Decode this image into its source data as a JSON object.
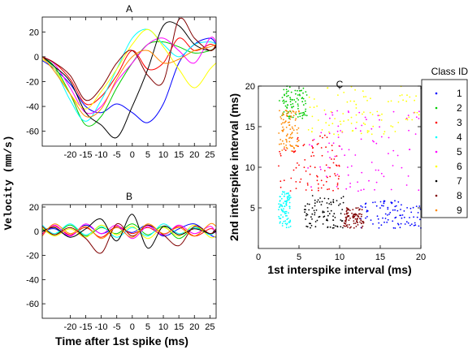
{
  "figure": {
    "ylabel_left": "Velocity (mm/s)",
    "xlabel_left": "Time after 1st spike (ms)"
  },
  "colors": {
    "series": [
      "#0000ff",
      "#00cc00",
      "#ff0000",
      "#00ffff",
      "#ff00ff",
      "#ffff00",
      "#000000",
      "#800000",
      "#ff8800"
    ]
  },
  "chart_data": [
    {
      "panel": "A",
      "type": "line",
      "title": "A",
      "xlim": [
        -29,
        27
      ],
      "ylim": [
        -72,
        32
      ],
      "xticks": [
        -20,
        -15,
        -10,
        -5,
        0,
        5,
        10,
        15,
        20,
        25
      ],
      "yticks": [
        -60,
        -40,
        -20,
        0,
        20
      ],
      "series": [
        {
          "id": "1",
          "x": [
            -29,
            -25,
            -20,
            -15,
            -10,
            -5,
            0,
            5,
            10,
            15,
            20,
            25,
            27
          ],
          "y": [
            -3,
            -10,
            -22,
            -40,
            -45,
            -38,
            -45,
            -53,
            -38,
            -5,
            10,
            15,
            10
          ]
        },
        {
          "id": "2",
          "x": [
            -29,
            -25,
            -20,
            -15,
            -10,
            -5,
            0,
            5,
            10,
            15,
            20,
            25,
            27
          ],
          "y": [
            0,
            -8,
            -30,
            -55,
            -48,
            -25,
            -5,
            10,
            12,
            8,
            3,
            5,
            8
          ]
        },
        {
          "id": "3",
          "x": [
            -29,
            -25,
            -20,
            -15,
            -10,
            -5,
            0,
            5,
            10,
            15,
            20,
            25,
            27
          ],
          "y": [
            0,
            -5,
            -18,
            -38,
            -32,
            -15,
            5,
            -10,
            -5,
            15,
            5,
            10,
            8
          ]
        },
        {
          "id": "4",
          "x": [
            -29,
            -25,
            -20,
            -15,
            -10,
            -5,
            0,
            5,
            10,
            15,
            20,
            25,
            27
          ],
          "y": [
            0,
            -10,
            -35,
            -52,
            -35,
            -10,
            15,
            22,
            10,
            0,
            10,
            12,
            10
          ]
        },
        {
          "id": "5",
          "x": [
            -29,
            -25,
            -20,
            -15,
            -10,
            -5,
            0,
            5,
            10,
            15,
            20,
            25,
            27
          ],
          "y": [
            0,
            -6,
            -25,
            -45,
            -40,
            -20,
            -5,
            10,
            15,
            5,
            -5,
            15,
            12
          ]
        },
        {
          "id": "6",
          "x": [
            -29,
            -25,
            -20,
            -15,
            -10,
            -5,
            0,
            5,
            10,
            15,
            20,
            25,
            27
          ],
          "y": [
            -2,
            -10,
            -30,
            -42,
            -28,
            -10,
            10,
            22,
            8,
            -10,
            -25,
            -10,
            -5
          ]
        },
        {
          "id": "7",
          "x": [
            -29,
            -25,
            -20,
            -15,
            -10,
            -5,
            0,
            5,
            10,
            15,
            20,
            25,
            27
          ],
          "y": [
            0,
            -8,
            -20,
            -45,
            -55,
            -65,
            -40,
            -10,
            25,
            25,
            10,
            5,
            8
          ]
        },
        {
          "id": "8",
          "x": [
            -29,
            -25,
            -20,
            -15,
            -10,
            -5,
            0,
            5,
            10,
            15,
            20,
            25,
            27
          ],
          "y": [
            0,
            -5,
            -15,
            -35,
            -25,
            -5,
            5,
            -15,
            -20,
            30,
            15,
            5,
            10
          ]
        },
        {
          "id": "9",
          "x": [
            -29,
            -25,
            -20,
            -15,
            -10,
            -5,
            0,
            5,
            10,
            15,
            20,
            25,
            27
          ],
          "y": [
            0,
            -12,
            -30,
            -48,
            -42,
            -18,
            0,
            5,
            -5,
            -2,
            5,
            8,
            10
          ]
        }
      ]
    },
    {
      "panel": "B",
      "type": "line",
      "title": "B",
      "xlim": [
        -29,
        27
      ],
      "ylim": [
        -72,
        22
      ],
      "xticks": [
        -20,
        -15,
        -10,
        -5,
        0,
        5,
        10,
        15,
        20,
        25
      ],
      "yticks": [
        -60,
        -40,
        -20,
        0,
        20
      ],
      "series": [
        {
          "id": "1",
          "x": [
            -29,
            -25,
            -20,
            -15,
            -10,
            -5,
            0,
            5,
            10,
            15,
            20,
            25,
            27
          ],
          "y": [
            0,
            2,
            -4,
            5,
            -2,
            3,
            -1,
            5,
            -4,
            2,
            6,
            -3,
            -5
          ]
        },
        {
          "id": "2",
          "x": [
            -29,
            -25,
            -20,
            -15,
            -10,
            -5,
            0,
            5,
            10,
            15,
            20,
            25,
            27
          ],
          "y": [
            2,
            -3,
            5,
            -4,
            3,
            -2,
            6,
            -3,
            4,
            -6,
            3,
            -2,
            0
          ]
        },
        {
          "id": "3",
          "x": [
            -29,
            -25,
            -20,
            -15,
            -10,
            -5,
            0,
            5,
            10,
            15,
            20,
            25,
            27
          ],
          "y": [
            -2,
            4,
            -3,
            3,
            -5,
            4,
            -2,
            3,
            -3,
            4,
            -4,
            2,
            0
          ]
        },
        {
          "id": "4",
          "x": [
            -29,
            -25,
            -20,
            -15,
            -10,
            -5,
            0,
            5,
            10,
            15,
            20,
            25,
            27
          ],
          "y": [
            5,
            -2,
            6,
            -3,
            4,
            -5,
            3,
            -4,
            6,
            -2,
            3,
            -3,
            2
          ]
        },
        {
          "id": "5",
          "x": [
            -29,
            -25,
            -20,
            -15,
            -10,
            -5,
            0,
            5,
            10,
            15,
            20,
            25,
            27
          ],
          "y": [
            -3,
            5,
            -4,
            6,
            -2,
            5,
            -6,
            4,
            -3,
            5,
            -2,
            4,
            -2
          ]
        },
        {
          "id": "6",
          "x": [
            -29,
            -25,
            -20,
            -15,
            -10,
            -5,
            0,
            5,
            10,
            15,
            20,
            25,
            27
          ],
          "y": [
            3,
            -4,
            2,
            -5,
            5,
            -3,
            4,
            -6,
            3,
            -4,
            5,
            -5,
            -4
          ]
        },
        {
          "id": "7",
          "x": [
            -29,
            -25,
            -20,
            -15,
            -10,
            -5,
            0,
            5,
            10,
            15,
            20,
            25,
            27
          ],
          "y": [
            0,
            3,
            -5,
            2,
            10,
            -8,
            14,
            -14,
            4,
            -3,
            2,
            -2,
            0
          ]
        },
        {
          "id": "8",
          "x": [
            -29,
            -25,
            -20,
            -15,
            -10,
            -5,
            0,
            5,
            10,
            15,
            20,
            25,
            27
          ],
          "y": [
            4,
            -3,
            3,
            -6,
            -18,
            6,
            -4,
            5,
            -3,
            -12,
            4,
            -2,
            2
          ]
        },
        {
          "id": "9",
          "x": [
            -29,
            -25,
            -20,
            -15,
            -10,
            -5,
            0,
            5,
            10,
            15,
            20,
            25,
            27
          ],
          "y": [
            -4,
            6,
            -2,
            4,
            -6,
            3,
            -5,
            6,
            -2,
            3,
            -4,
            6,
            4
          ]
        }
      ]
    },
    {
      "panel": "C",
      "type": "scatter",
      "title": "C",
      "xlabel": "1st interspike interval (ms)",
      "ylabel": "2nd interspike interval (ms)",
      "xlim": [
        0,
        20
      ],
      "ylim": [
        0,
        20
      ],
      "xticks": [
        0,
        5,
        10,
        15,
        20
      ],
      "yticks": [
        5,
        10,
        15,
        20
      ],
      "legend_title": "Class ID",
      "legend_position": "right",
      "classes": [
        {
          "id": "1",
          "xrange": [
            12.5,
            20
          ],
          "yrange": [
            2.5,
            6
          ]
        },
        {
          "id": "2",
          "xrange": [
            2.5,
            6
          ],
          "yrange": [
            16,
            20
          ]
        },
        {
          "id": "3",
          "xrange": [
            2.5,
            10
          ],
          "yrange": [
            7,
            14
          ]
        },
        {
          "id": "4",
          "xrange": [
            2.5,
            4
          ],
          "yrange": [
            2.5,
            7
          ]
        },
        {
          "id": "5",
          "xrange": [
            6,
            20
          ],
          "yrange": [
            7,
            17
          ]
        },
        {
          "id": "6",
          "xrange": [
            6,
            20
          ],
          "yrange": [
            14,
            20
          ]
        },
        {
          "id": "7",
          "xrange": [
            5.5,
            10.5
          ],
          "yrange": [
            2.5,
            6.5
          ]
        },
        {
          "id": "8",
          "xrange": [
            10.5,
            13
          ],
          "yrange": [
            2.5,
            5
          ]
        },
        {
          "id": "9",
          "xrange": [
            2.5,
            5
          ],
          "yrange": [
            12,
            17
          ]
        }
      ]
    }
  ]
}
